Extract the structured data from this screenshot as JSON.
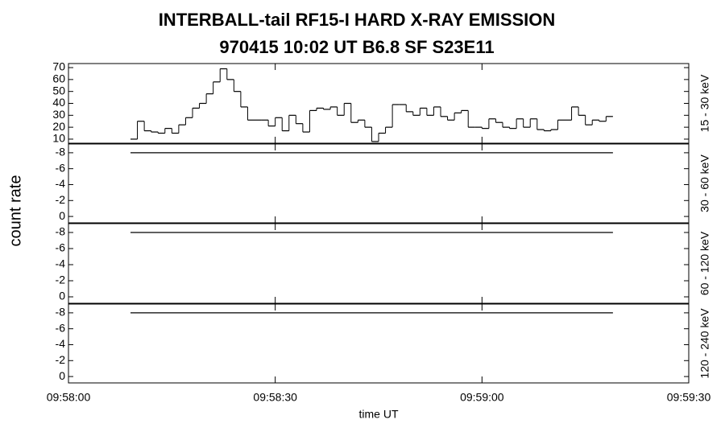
{
  "title": "INTERBALL-tail  RF15-I  HARD  X-RAY  EMISSION",
  "subtitle": "970415     10:02 UT     B6.8   SF   S23E11",
  "y_label": "count rate",
  "x_label": "time UT",
  "chart_data": [
    {
      "type": "histogram",
      "label": "15 - 30 keV",
      "color": "#000000",
      "bins": [
        9,
        10,
        11,
        12,
        13,
        14,
        15,
        16,
        17,
        18,
        19,
        20,
        21,
        22,
        23,
        24,
        25,
        26,
        27,
        28,
        29,
        30,
        31,
        32,
        33,
        34,
        35,
        36,
        37,
        38,
        39,
        40,
        41,
        42,
        43,
        44,
        45,
        46,
        47,
        48,
        49,
        50,
        51,
        52,
        53,
        54,
        55,
        56,
        57,
        58,
        59,
        60,
        61,
        62,
        63,
        64,
        65,
        66,
        67,
        68,
        69,
        70,
        71,
        72,
        73,
        74,
        75,
        76,
        77,
        78,
        79
      ],
      "values": [
        10,
        25,
        17,
        16,
        15,
        19,
        15,
        22,
        28,
        36,
        40,
        48,
        58,
        69,
        60,
        50,
        37,
        26,
        26,
        26,
        21,
        28,
        17,
        30,
        23,
        16,
        34,
        36,
        35,
        37,
        30,
        40,
        24,
        26,
        20,
        8,
        15,
        20,
        39,
        39,
        33,
        30,
        36,
        30,
        37,
        29,
        26,
        32,
        34,
        20,
        20,
        19,
        27,
        24,
        20,
        19,
        27,
        20,
        27,
        18,
        17,
        18,
        26,
        26,
        37,
        30,
        22,
        26,
        25,
        29
      ],
      "ylim": [
        6.6,
        73.4
      ],
      "yticks": [
        10,
        20,
        30,
        40,
        50,
        60,
        70
      ]
    },
    {
      "type": "histogram",
      "label": "30 - 60 keV",
      "color": "#000000",
      "bins": [
        9,
        79
      ],
      "values": [
        -8
      ],
      "ylim": [
        0.8,
        -9.1
      ],
      "yticks": [
        0,
        -2,
        -4,
        -6,
        -8
      ]
    },
    {
      "type": "histogram",
      "label": "60 - 120 keV",
      "color": "#000000",
      "bins": [
        9,
        79
      ],
      "values": [
        -8
      ],
      "ylim": [
        0.8,
        -9.1
      ],
      "yticks": [
        0,
        -2,
        -4,
        -6,
        -8
      ]
    },
    {
      "type": "histogram",
      "label": "120 - 240 keV",
      "color": "#000000",
      "bins": [
        9,
        79
      ],
      "values": [
        -8
      ],
      "ylim": [
        0.8,
        -9.1
      ],
      "yticks": [
        0,
        -2,
        -4,
        -6,
        -8
      ],
      "xlim": [
        0,
        90
      ],
      "xticks": [
        {
          "value": 0,
          "label": "09:58:00"
        },
        {
          "value": 30,
          "label": "09:58:30"
        },
        {
          "value": 60,
          "label": "09:59:00"
        },
        {
          "value": 90,
          "label": "09:59:30"
        }
      ]
    }
  ]
}
